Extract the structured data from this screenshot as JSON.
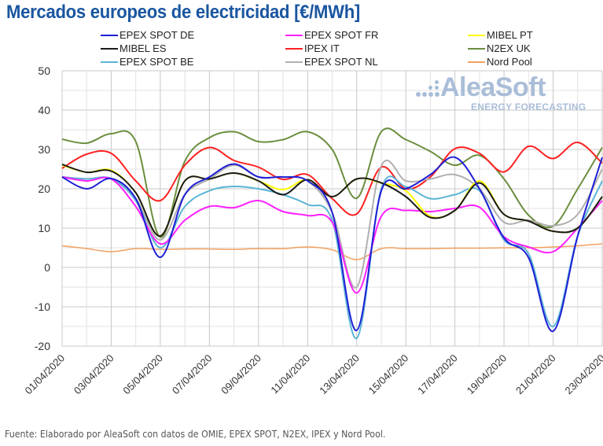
{
  "chart_data": {
    "type": "line",
    "title": "Mercados europeos de electricidad [€/MWh]",
    "xlabel": "",
    "ylabel": "",
    "ylim": [
      -20,
      50
    ],
    "yticks": [
      -20,
      -10,
      0,
      10,
      20,
      30,
      40,
      50
    ],
    "grid": true,
    "legend_position": "top",
    "x": [
      "01/04/2020",
      "02/04/2020",
      "03/04/2020",
      "04/04/2020",
      "05/04/2020",
      "06/04/2020",
      "07/04/2020",
      "08/04/2020",
      "09/04/2020",
      "10/04/2020",
      "11/04/2020",
      "12/04/2020",
      "13/04/2020",
      "14/04/2020",
      "15/04/2020",
      "16/04/2020",
      "17/04/2020",
      "18/04/2020",
      "19/04/2020",
      "20/04/2020",
      "21/04/2020",
      "22/04/2020",
      "23/04/2020"
    ],
    "xtick_labels": [
      "01/04/2020",
      "03/04/2020",
      "05/04/2020",
      "07/04/2020",
      "09/04/2020",
      "11/04/2020",
      "13/04/2020",
      "15/04/2020",
      "17/04/2020",
      "19/04/2020",
      "21/04/2020",
      "23/04/2020"
    ],
    "series": [
      {
        "name": "EPEX SPOT DE",
        "color": "#1f1fd6",
        "values": [
          23.0,
          20.0,
          22.6,
          17.5,
          2.6,
          18.5,
          23.0,
          26.3,
          23.0,
          23.0,
          22.0,
          14.0,
          -16.0,
          19.5,
          20.0,
          23.6,
          28.0,
          20.0,
          7.5,
          2.5,
          -16.2,
          8.0,
          28.0
        ]
      },
      {
        "name": "EPEX SPOT FR",
        "color": "#ff1fff",
        "values": [
          23.0,
          22.0,
          22.5,
          15.5,
          6.0,
          12.0,
          15.5,
          15.2,
          17.0,
          14.2,
          13.2,
          11.5,
          -6.5,
          13.0,
          14.5,
          14.2,
          15.0,
          15.3,
          7.8,
          5.2,
          4.0,
          10.0,
          17.0
        ]
      },
      {
        "name": "MIBEL PT",
        "color": "#ffff00",
        "values": [
          26.0,
          24.2,
          24.7,
          19.0,
          8.0,
          22.0,
          22.5,
          24.0,
          22.0,
          19.8,
          22.3,
          18.0,
          22.5,
          21.5,
          19.5,
          13.0,
          14.5,
          22.0,
          13.5,
          11.8,
          9.2,
          10.0,
          18.0
        ]
      },
      {
        "name": "MIBEL ES",
        "color": "#1a1a1a",
        "values": [
          26.2,
          24.2,
          24.5,
          19.0,
          8.0,
          22.0,
          22.5,
          24.0,
          22.0,
          18.5,
          22.3,
          18.0,
          22.5,
          21.5,
          18.0,
          12.7,
          14.5,
          21.5,
          13.5,
          11.8,
          9.2,
          10.0,
          18.0
        ]
      },
      {
        "name": "IPEX IT",
        "color": "#ff2020",
        "values": [
          25.2,
          28.8,
          29.0,
          22.0,
          17.0,
          26.0,
          30.5,
          27.2,
          25.5,
          22.4,
          23.6,
          17.5,
          13.6,
          25.5,
          20.0,
          23.0,
          30.2,
          29.0,
          24.3,
          30.8,
          27.7,
          31.8,
          26.5
        ]
      },
      {
        "name": "N2EX UK",
        "color": "#6b8e3e",
        "values": [
          32.6,
          31.6,
          34.0,
          32.0,
          7.7,
          27.0,
          33.0,
          34.5,
          32.0,
          32.5,
          34.5,
          30.0,
          17.6,
          34.5,
          32.5,
          29.5,
          26.0,
          28.5,
          22.5,
          13.3,
          10.5,
          20.0,
          30.5
        ]
      },
      {
        "name": "EPEX SPOT BE",
        "color": "#5ab4d6",
        "values": [
          23.0,
          22.5,
          22.6,
          17.0,
          5.0,
          15.5,
          19.5,
          20.6,
          20.0,
          18.5,
          16.0,
          12.0,
          -18.0,
          20.0,
          20.5,
          17.5,
          18.5,
          19.5,
          7.0,
          3.5,
          -15.0,
          8.0,
          22.0
        ]
      },
      {
        "name": "EPEX SPOT NL",
        "color": "#b0b0b0",
        "values": [
          23.0,
          22.5,
          22.6,
          17.5,
          7.0,
          18.5,
          22.5,
          26.0,
          23.0,
          23.0,
          22.0,
          14.0,
          -5.0,
          25.8,
          22.0,
          22.5,
          23.6,
          20.0,
          11.5,
          12.0,
          10.6,
          13.5,
          25.0
        ]
      },
      {
        "name": "Nord Pool",
        "color": "#f0a060",
        "values": [
          5.5,
          4.8,
          4.0,
          4.8,
          4.6,
          4.7,
          4.7,
          4.6,
          4.8,
          4.8,
          5.2,
          4.5,
          2.0,
          4.8,
          4.8,
          4.8,
          4.9,
          4.9,
          5.0,
          5.0,
          5.2,
          5.5,
          6.0
        ]
      }
    ]
  },
  "legend": [
    {
      "label": "EPEX SPOT DE",
      "color": "#1f1fd6"
    },
    {
      "label": "EPEX SPOT FR",
      "color": "#ff1fff"
    },
    {
      "label": "MIBEL PT",
      "color": "#ffff00"
    },
    {
      "label": "MIBEL ES",
      "color": "#1a1a1a"
    },
    {
      "label": "IPEX IT",
      "color": "#ff2020"
    },
    {
      "label": "N2EX UK",
      "color": "#6b8e3e"
    },
    {
      "label": "EPEX SPOT BE",
      "color": "#5ab4d6"
    },
    {
      "label": "EPEX SPOT NL",
      "color": "#b0b0b0"
    },
    {
      "label": "Nord Pool",
      "color": "#f0a060"
    }
  ],
  "watermark": {
    "brand": "AleaSoft",
    "tagline": "ENERGY FORECASTING"
  },
  "footer": "Fuente: Elaborado por AleaSoft con datos de OMIE, EPEX SPOT, N2EX, IPEX y Nord Pool."
}
